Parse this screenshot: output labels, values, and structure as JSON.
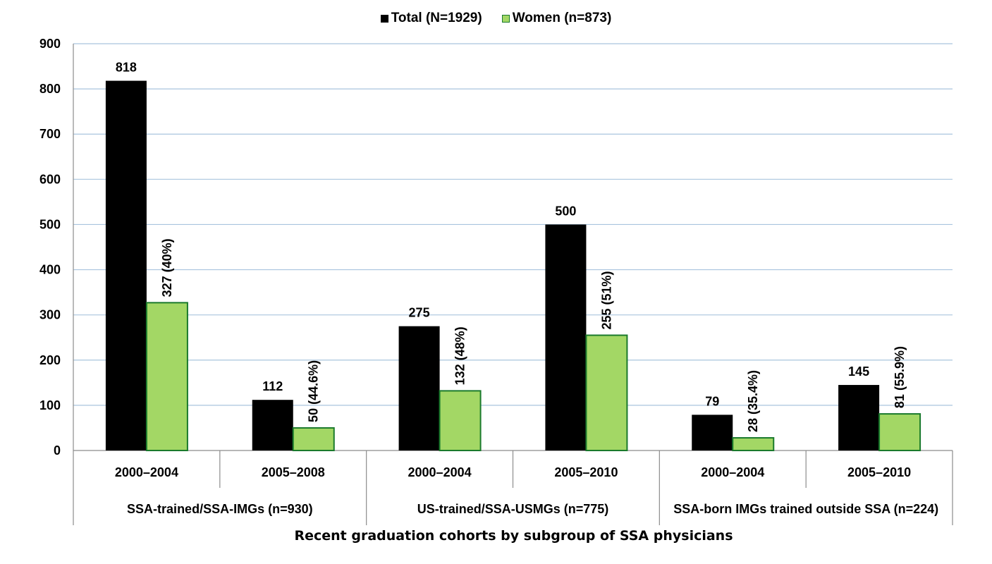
{
  "chart_data": {
    "type": "bar",
    "title": "",
    "xlabel": "Recent graduation cohorts by subgroup of SSA physicians",
    "ylabel": "",
    "ylim": [
      0,
      900
    ],
    "yticks": [
      0,
      100,
      200,
      300,
      400,
      500,
      600,
      700,
      800,
      900
    ],
    "grid": true,
    "legend_position": "top-center",
    "groups": [
      {
        "label": "SSA-trained/SSA-IMGs (n=930)",
        "categories": [
          "2000–2004",
          "2005–2008"
        ]
      },
      {
        "label": "US-trained/SSA-USMGs (n=775)",
        "categories": [
          "2000–2004",
          "2005–2010"
        ]
      },
      {
        "label": "SSA-born IMGs trained outside SSA (n=224)",
        "categories": [
          "2000–2004",
          "2005–2010"
        ]
      }
    ],
    "categories": [
      "2000–2004",
      "2005–2008",
      "2000–2004",
      "2005–2010",
      "2000–2004",
      "2005–2010"
    ],
    "series": [
      {
        "name": "Total (N=1929)",
        "color": "#000000",
        "values": [
          818,
          112,
          275,
          500,
          79,
          145
        ],
        "labels": [
          "818",
          "112",
          "275",
          "500",
          "79",
          "145"
        ]
      },
      {
        "name": "Women (n=873)",
        "color": "#a3d765",
        "stroke": "#1a7a2c",
        "values": [
          327,
          50,
          132,
          255,
          28,
          81
        ],
        "labels": [
          "327 (40%)",
          "50 (44.6%)",
          "132 (48%)",
          "255 (51%)",
          "28 (35.4%)",
          "81 (55.9%)"
        ]
      }
    ]
  }
}
